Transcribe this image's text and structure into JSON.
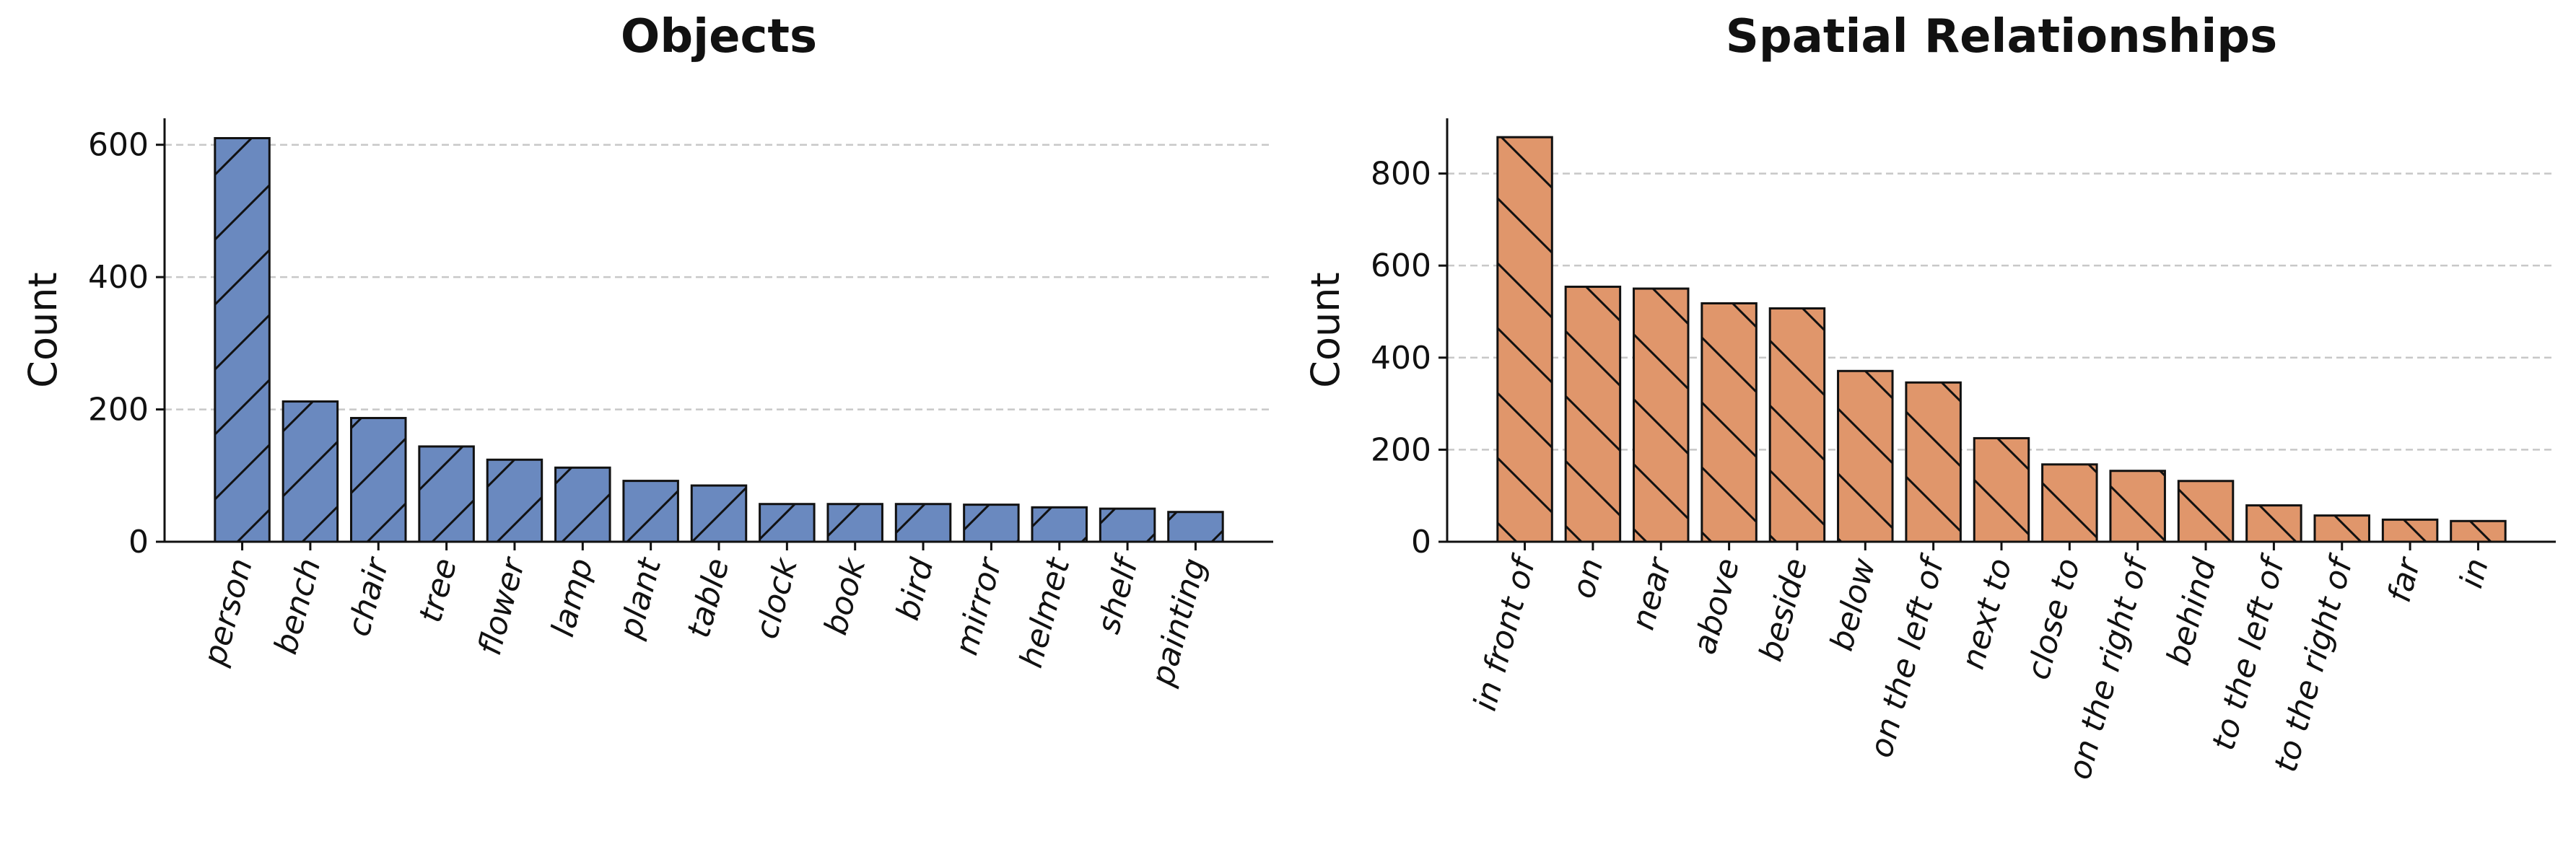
{
  "chart_data": [
    {
      "type": "bar",
      "title": "Objects",
      "ylabel": "Count",
      "categories": [
        "person",
        "bench",
        "chair",
        "tree",
        "flower",
        "lamp",
        "plant",
        "table",
        "clock",
        "book",
        "bird",
        "mirror",
        "helmet",
        "shelf",
        "painting"
      ],
      "values": [
        610,
        212,
        187,
        144,
        124,
        112,
        92,
        85,
        57,
        57,
        57,
        56,
        52,
        50,
        45
      ],
      "color": "#6a89bf",
      "hatch": "/",
      "ylim": [
        0,
        640
      ],
      "yticks": [
        0,
        200,
        400,
        600
      ],
      "grid": true
    },
    {
      "type": "bar",
      "title": "Spatial Relationships",
      "ylabel": "Count",
      "categories": [
        "in front of",
        "on",
        "near",
        "above",
        "beside",
        "below",
        "on the left of",
        "next to",
        "close to",
        "on the right of",
        "behind",
        "to the left of",
        "to the right of",
        "far",
        "in"
      ],
      "values": [
        879,
        554,
        550,
        518,
        507,
        371,
        346,
        225,
        168,
        154,
        132,
        79,
        57,
        48,
        45
      ],
      "color": "#e0966b",
      "hatch": "\\",
      "ylim": [
        0,
        920
      ],
      "yticks": [
        0,
        200,
        400,
        600,
        800
      ],
      "grid": true
    }
  ]
}
